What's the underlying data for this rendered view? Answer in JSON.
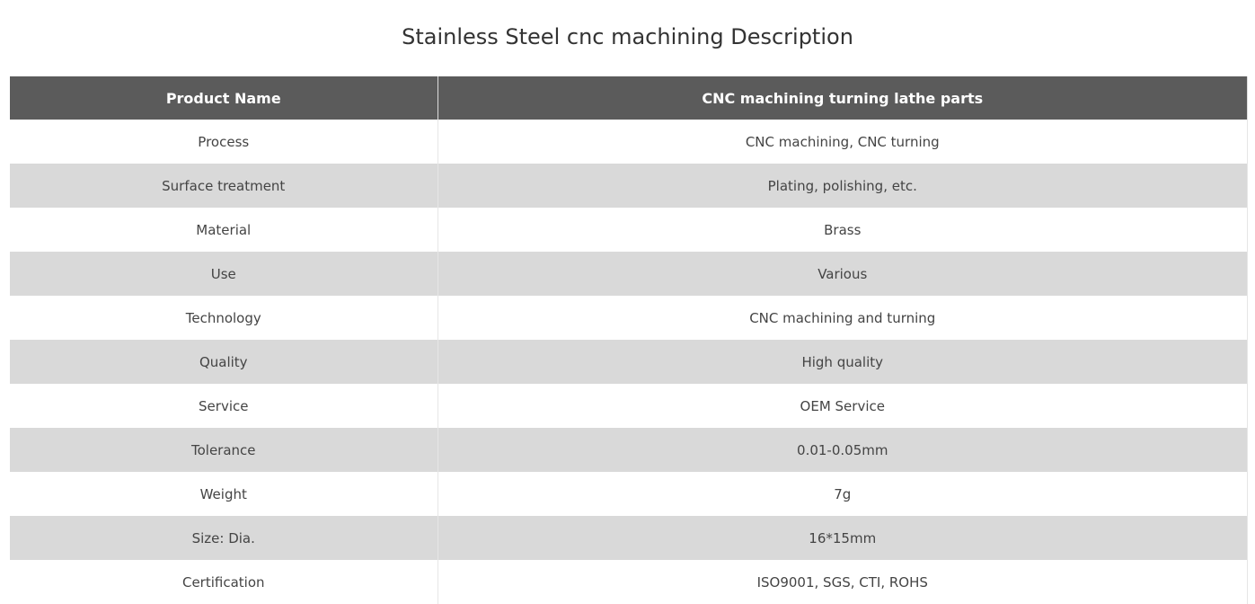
{
  "header": {
    "title": "Stainless Steel cnc machining Description"
  },
  "table": {
    "columns": [
      "Product Name",
      "CNC machining turning lathe parts"
    ],
    "rows": [
      [
        "Process",
        "CNC machining, CNC turning"
      ],
      [
        "Surface treatment",
        "Plating, polishing, etc."
      ],
      [
        "Material",
        "Brass"
      ],
      [
        "Use",
        "Various"
      ],
      [
        "Technology",
        "CNC machining and turning"
      ],
      [
        "Quality",
        "High quality"
      ],
      [
        "Service",
        "OEM Service"
      ],
      [
        "Tolerance",
        "0.01-0.05mm"
      ],
      [
        "Weight",
        "7g"
      ],
      [
        "Size: Dia.",
        "16*15mm"
      ],
      [
        "Certification",
        "ISO9001, SGS, CTI, ROHS"
      ]
    ]
  }
}
